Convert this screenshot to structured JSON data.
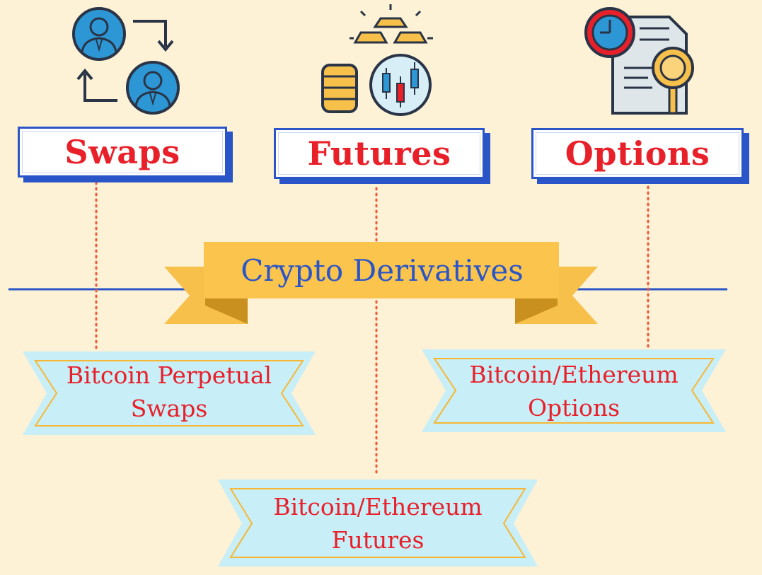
{
  "title": "Crypto Derivatives",
  "categories": [
    {
      "label": "Swaps",
      "icon": "swap-users-icon"
    },
    {
      "label": "Futures",
      "icon": "gold-coins-candlestick-icon"
    },
    {
      "label": "Options",
      "icon": "clock-document-magnifier-icon"
    }
  ],
  "products": [
    {
      "line1": "Bitcoin Perpetual",
      "line2": "Swaps"
    },
    {
      "line1": "Bitcoin/Ethereum",
      "line2": "Options"
    },
    {
      "line1": "Bitcoin/Ethereum",
      "line2": "Futures"
    }
  ],
  "colors": {
    "background": "#fdf1d6",
    "blue": "#2a55c9",
    "red": "#e8202a",
    "gold": "#f7c04a",
    "banner": "#c8eef7"
  }
}
